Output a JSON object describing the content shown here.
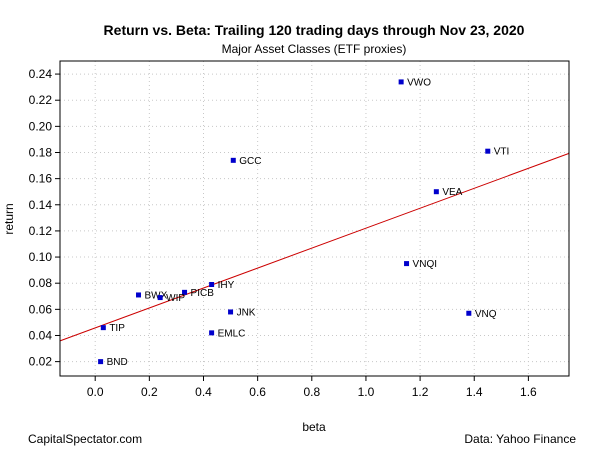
{
  "chart_data": {
    "type": "scatter",
    "title": "Return vs. Beta: Trailing 120 trading days through Nov 23, 2020",
    "subtitle": "Major Asset Classes (ETF proxies)",
    "xlabel": "beta",
    "ylabel": "return",
    "xlim": [
      -0.13,
      1.75
    ],
    "ylim": [
      0.009,
      0.25
    ],
    "xticks": [
      "0.0",
      "0.2",
      "0.4",
      "0.6",
      "0.8",
      "1.0",
      "1.2",
      "1.4",
      "1.6"
    ],
    "yticks": [
      "0.02",
      "0.04",
      "0.06",
      "0.08",
      "0.10",
      "0.12",
      "0.14",
      "0.16",
      "0.18",
      "0.20",
      "0.22",
      "0.24"
    ],
    "grid": true,
    "point_color": "#0000cc",
    "line_color": "#cc0000",
    "points": [
      {
        "label": "VWO",
        "x": 1.13,
        "y": 0.234
      },
      {
        "label": "VTI",
        "x": 1.45,
        "y": 0.181
      },
      {
        "label": "GCC",
        "x": 0.51,
        "y": 0.174
      },
      {
        "label": "VEA",
        "x": 1.26,
        "y": 0.15
      },
      {
        "label": "VNQI",
        "x": 1.15,
        "y": 0.095
      },
      {
        "label": "IHY",
        "x": 0.43,
        "y": 0.079
      },
      {
        "label": "PICB",
        "x": 0.33,
        "y": 0.073
      },
      {
        "label": "BWX",
        "x": 0.16,
        "y": 0.071
      },
      {
        "label": "WIP",
        "x": 0.24,
        "y": 0.069
      },
      {
        "label": "JNK",
        "x": 0.5,
        "y": 0.058
      },
      {
        "label": "VNQ",
        "x": 1.38,
        "y": 0.057
      },
      {
        "label": "TIP",
        "x": 0.03,
        "y": 0.046
      },
      {
        "label": "EMLC",
        "x": 0.43,
        "y": 0.042
      },
      {
        "label": "BND",
        "x": 0.02,
        "y": 0.02
      }
    ],
    "trendline": {
      "intercept": 0.0458,
      "slope": 0.0763
    }
  },
  "footer": {
    "left": "CapitalSpectator.com",
    "right": "Data: Yahoo Finance"
  }
}
